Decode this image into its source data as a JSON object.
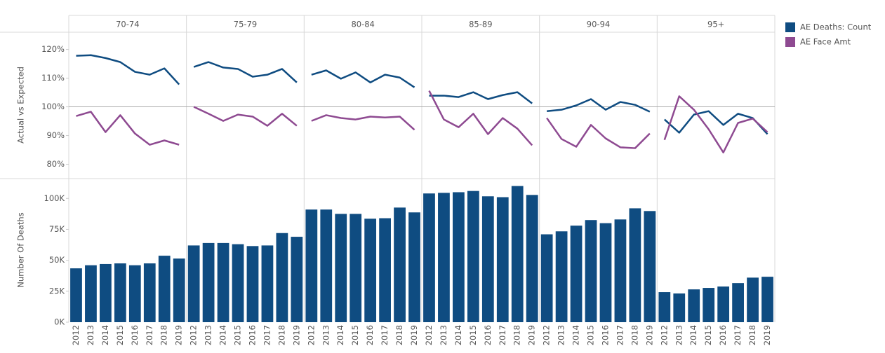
{
  "chart_data": {
    "type": "small-multiples",
    "facets": [
      "70-74",
      "75-79",
      "80-84",
      "85-89",
      "90-94",
      "95+"
    ],
    "x": [
      "2012",
      "2013",
      "2014",
      "2015",
      "2016",
      "2017",
      "2018",
      "2019"
    ],
    "legend_position": "right",
    "top": {
      "type": "line",
      "ylabel": "Actual vs Expected",
      "ylim": [
        75,
        126
      ],
      "yticks": [
        {
          "value": 80,
          "label": "80%"
        },
        {
          "value": 90,
          "label": "90%"
        },
        {
          "value": 100,
          "label": "100%"
        },
        {
          "value": 110,
          "label": "110%"
        },
        {
          "value": 120,
          "label": "120%"
        }
      ],
      "reference_line": 100,
      "series": [
        {
          "name": "AE Deaths: Count",
          "color": "#0f4c81",
          "values": [
            [
              117.8,
              118,
              117,
              115.6,
              112.2,
              111.2,
              113.4,
              107.8
            ],
            [
              113.9,
              115.6,
              113.7,
              113.2,
              110.5,
              111.2,
              113.2,
              108.5
            ],
            [
              111.2,
              112.7,
              109.8,
              112,
              108.5,
              111.2,
              110.2,
              106.8
            ],
            [
              103.9,
              103.9,
              103.4,
              105.1,
              102.7,
              104.1,
              105.1,
              101.2
            ],
            [
              98.5,
              99,
              100.5,
              102.7,
              99,
              101.7,
              100.7,
              98.3
            ],
            [
              95.6,
              91,
              97.3,
              98.5,
              93.7,
              97.6,
              96.1,
              90.5
            ]
          ]
        },
        {
          "name": "AE Face Amt",
          "color": "#8e4a91",
          "values": [
            [
              96.8,
              98.3,
              91.2,
              97.1,
              90.7,
              86.8,
              88.3,
              86.8
            ],
            [
              100,
              97.6,
              95.1,
              97.3,
              96.6,
              93.4,
              97.6,
              93.4
            ],
            [
              95.1,
              97.1,
              96.1,
              95.6,
              96.6,
              96.3,
              96.6,
              92
            ],
            [
              105.6,
              95.6,
              92.9,
              97.6,
              90.5,
              96.1,
              92.4,
              86.6
            ],
            [
              96.1,
              88.8,
              86.1,
              93.7,
              89,
              85.9,
              85.6,
              90.7
            ],
            [
              88.5,
              103.7,
              99,
              92.2,
              84.1,
              94.4,
              95.9,
              91.2
            ]
          ]
        }
      ]
    },
    "bottom": {
      "type": "bar",
      "ylabel": "Number Of Deaths",
      "ylim": [
        0,
        116000
      ],
      "yticks": [
        {
          "value": 0,
          "label": "0K"
        },
        {
          "value": 25000,
          "label": "25K"
        },
        {
          "value": 50000,
          "label": "50K"
        },
        {
          "value": 75000,
          "label": "75K"
        },
        {
          "value": 100000,
          "label": "100K"
        }
      ],
      "color": "#0f4c81",
      "values": [
        [
          43500,
          46000,
          47000,
          47500,
          46000,
          47500,
          53700,
          51400
        ],
        [
          62000,
          64000,
          64000,
          63000,
          61500,
          62000,
          72000,
          69000
        ],
        [
          91000,
          91000,
          87500,
          87500,
          83600,
          84000,
          92600,
          88700
        ],
        [
          104000,
          104500,
          105000,
          106000,
          101700,
          101000,
          110000,
          102800
        ],
        [
          71000,
          73400,
          78000,
          82500,
          80000,
          83000,
          92000,
          89800
        ],
        [
          24300,
          23200,
          26500,
          27700,
          28800,
          31600,
          36000,
          36700
        ]
      ]
    }
  }
}
